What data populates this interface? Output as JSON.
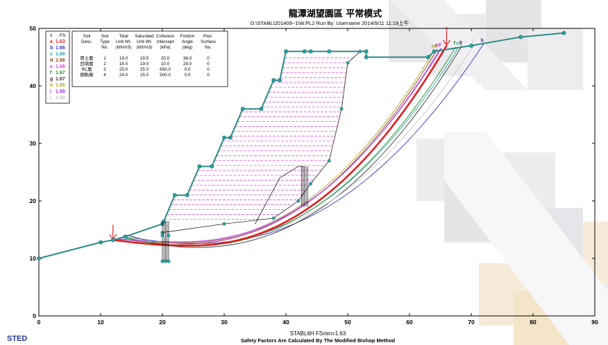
{
  "program_label": "STED",
  "chart_data": {
    "type": "line",
    "title": "龍潭湖望園區 平常模式",
    "subtitle": "D:\\STABL\\201409~1\\W.PL2   Run By: Username   2014/9/11   11:19上午",
    "footer_line1": "STABL6H   FSmin=1.63",
    "footer_line2": "Safety Factors Are Calculated By The Modified Bishop Method",
    "xlim": [
      0,
      90
    ],
    "ylim": [
      0,
      50
    ],
    "x_ticks": [
      0,
      10,
      20,
      30,
      40,
      50,
      60,
      70,
      80,
      90
    ],
    "y_ticks": [
      0,
      10,
      20,
      30,
      40,
      50
    ],
    "legend": {
      "header": [
        "#",
        "FS"
      ],
      "entries": [
        {
          "id": "a",
          "fs": "1.63",
          "color": "#e31a1c"
        },
        {
          "id": "b",
          "fs": "1.66",
          "color": "#3333cc"
        },
        {
          "id": "c",
          "fs": "1.66",
          "color": "#2ca6a4"
        },
        {
          "id": "d",
          "fs": "1.66",
          "color": "#8b4513"
        },
        {
          "id": "e",
          "fs": "1.66",
          "color": "#d93cd9"
        },
        {
          "id": "f",
          "fs": "1.67",
          "color": "#228b22"
        },
        {
          "id": "g",
          "fs": "1.67",
          "color": "#333333"
        },
        {
          "id": "h",
          "fs": "1.68",
          "color": "#b5a320"
        },
        {
          "id": "i",
          "fs": "1.68",
          "color": "#9b30ff"
        },
        {
          "id": "j",
          "fs": "1.68",
          "color": "#c8c8c8"
        }
      ]
    },
    "soil_table": {
      "headers": [
        [
          "Soil",
          "Soil",
          "Total",
          "Saturated",
          "Cohesion",
          "Friction",
          "Piez."
        ],
        [
          "Desc.",
          "Type",
          "Unit Wt.",
          "Unit Wt.",
          "Intercept",
          "Angle",
          "Surface"
        ],
        [
          "",
          "No.",
          "(kN/m3)",
          "(kN/m3)",
          "(kPa)",
          "(deg)",
          "No."
        ]
      ],
      "rows": [
        [
          "原土層",
          "1",
          "19.0",
          "19.5",
          "20.0",
          "38.0",
          "0"
        ],
        [
          "回填層",
          "2",
          "18.5",
          "19.0",
          "10.0",
          "29.0",
          "0"
        ],
        [
          "RC層",
          "3",
          "25.0",
          "25.0",
          "650.0",
          "0.0",
          "0"
        ],
        [
          "鋼軌樁",
          "4",
          "24.0",
          "25.0",
          "500.0",
          "0.0",
          "0"
        ]
      ]
    },
    "ground_surface": [
      [
        0,
        10
      ],
      [
        10,
        12.8
      ],
      [
        12,
        13.2
      ],
      [
        14,
        13.8
      ],
      [
        20,
        16
      ],
      [
        20.2,
        16.4
      ],
      [
        22,
        21
      ],
      [
        24,
        21
      ],
      [
        26,
        26
      ],
      [
        28,
        26
      ],
      [
        30,
        31
      ],
      [
        31,
        31
      ],
      [
        33,
        36
      ],
      [
        36,
        36
      ],
      [
        38,
        41
      ],
      [
        39,
        41
      ],
      [
        40,
        46
      ],
      [
        43,
        46
      ],
      [
        44,
        46
      ],
      [
        47,
        46
      ],
      [
        53,
        46
      ],
      [
        53,
        45
      ],
      [
        63,
        45
      ],
      [
        64,
        46
      ],
      [
        70,
        47
      ],
      [
        78,
        48.5
      ],
      [
        85,
        49.2
      ]
    ],
    "layer_boundary": [
      [
        20,
        14.5
      ],
      [
        30,
        16
      ],
      [
        38,
        17
      ],
      [
        42,
        20
      ],
      [
        44,
        23
      ],
      [
        47,
        27
      ],
      [
        49,
        36
      ],
      [
        50,
        44
      ],
      [
        52,
        46
      ]
    ],
    "inner_boundary": [
      [
        35,
        16
      ],
      [
        37,
        20
      ],
      [
        39,
        24
      ],
      [
        42,
        26
      ],
      [
        43,
        26
      ]
    ],
    "wall_x": 20.5,
    "wall_bottom": 9.5,
    "wall_top": 16.5,
    "pile_x": 43,
    "pile_bottom": 19,
    "pile_top": 26,
    "critical_surface": {
      "name": "a",
      "fs": 1.63,
      "entry": [
        12,
        13.2
      ],
      "exit": [
        66,
        47
      ],
      "min_y": 12.2,
      "min_x": 24
    },
    "trial_surfaces": [
      {
        "name": "b",
        "entry": [
          14,
          13.8
        ],
        "exit": [
          72,
          47.3
        ],
        "min_x": 25,
        "min_y": 12.6
      },
      {
        "name": "c",
        "entry": [
          13.5,
          13.6
        ],
        "exit": [
          68,
          46.8
        ],
        "min_x": 24,
        "min_y": 12.3
      },
      {
        "name": "d",
        "entry": [
          13,
          13.4
        ],
        "exit": [
          64.5,
          46.4
        ],
        "min_x": 23,
        "min_y": 12.5
      },
      {
        "name": "e",
        "entry": [
          13,
          13.4
        ],
        "exit": [
          65,
          46.5
        ],
        "min_x": 23,
        "min_y": 12.7
      },
      {
        "name": "f",
        "entry": [
          13.8,
          13.7
        ],
        "exit": [
          67.5,
          46.8
        ],
        "min_x": 24,
        "min_y": 12.1
      },
      {
        "name": "g",
        "entry": [
          14.5,
          14
        ],
        "exit": [
          68.5,
          47
        ],
        "min_x": 25,
        "min_y": 11.9
      },
      {
        "name": "h",
        "entry": [
          12.5,
          13.3
        ],
        "exit": [
          64,
          46.2
        ],
        "min_x": 23,
        "min_y": 12.8
      },
      {
        "name": "i",
        "entry": [
          12.8,
          13.3
        ],
        "exit": [
          65.2,
          46.6
        ],
        "min_x": 23,
        "min_y": 12.9
      },
      {
        "name": "j",
        "entry": [
          14,
          13.8
        ],
        "exit": [
          70.5,
          47.2
        ],
        "min_x": 24,
        "min_y": 12.4
      }
    ]
  }
}
